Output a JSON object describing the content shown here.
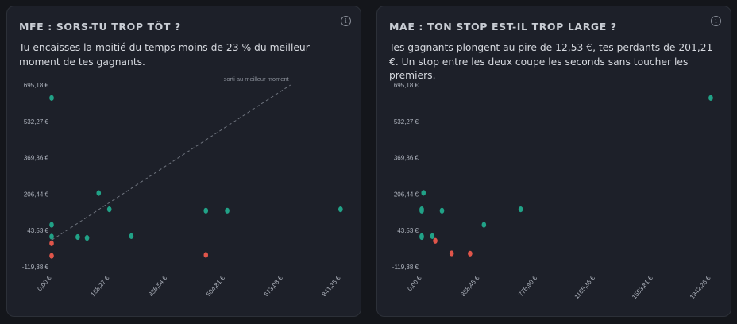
{
  "colors": {
    "winner": "#21a287",
    "loser": "#e0554a",
    "reference_line": "#6e737d"
  },
  "cards": [
    {
      "title": "MFE : SORS-TU TROP TÔT ?",
      "description": "Tu encaisses la moitié du temps moins de 23 % du meilleur moment de tes gagnants.",
      "info_icon": "info-icon"
    },
    {
      "title": "MAE : TON STOP EST-IL TROP LARGE ?",
      "description": "Tes gagnants plongent au pire de 12,53 €, tes perdants de 201,21 €. Un stop entre les deux coupe les seconds sans toucher les premiers.",
      "info_icon": "info-icon"
    }
  ],
  "chart_data": [
    {
      "type": "scatter",
      "x_ticks": [
        0,
        168.27,
        336.54,
        504.81,
        673.08,
        841.35
      ],
      "x_tick_labels": [
        "0,00 €",
        "168,27 €",
        "336,54 €",
        "504,81 €",
        "673,08 €",
        "841,35 €"
      ],
      "y_ticks": [
        -119.38,
        43.53,
        206.44,
        369.36,
        532.27,
        695.18
      ],
      "y_tick_labels": [
        "-119,38 €",
        "43,53 €",
        "206,44 €",
        "369,36 €",
        "532,27 €",
        "695,18 €"
      ],
      "xlim": [
        0,
        841.35
      ],
      "ylim": [
        -119.38,
        695.18
      ],
      "grid": false,
      "reference_line": {
        "from": [
          0,
          0
        ],
        "to": [
          695.18,
          695.18
        ],
        "label": "sorti au meilleur moment"
      },
      "series": [
        {
          "kind": "winner",
          "points": [
            [
              0,
              637
            ],
            [
              0,
              69
            ],
            [
              0,
              16
            ],
            [
              76,
              14
            ],
            [
              103,
              10
            ],
            [
              137,
              211
            ],
            [
              168,
              138
            ],
            [
              232,
              18
            ],
            [
              449,
              132
            ],
            [
              511,
              132
            ],
            [
              841,
              138
            ]
          ]
        },
        {
          "kind": "loser",
          "points": [
            [
              0,
              -14
            ],
            [
              0,
              -70
            ],
            [
              449,
              -66
            ]
          ]
        }
      ]
    },
    {
      "type": "scatter",
      "x_ticks": [
        0,
        388.45,
        776.9,
        1165.36,
        1553.81,
        1942.26
      ],
      "x_tick_labels": [
        "0,00 €",
        "388,45 €",
        "776,90 €",
        "1165,36 €",
        "1553,81 €",
        "1942,26 €"
      ],
      "y_ticks": [
        -119.38,
        43.53,
        206.44,
        369.36,
        532.27,
        695.18
      ],
      "y_tick_labels": [
        "-119,38 €",
        "43,53 €",
        "206,44 €",
        "369,36 €",
        "532,27 €",
        "695,18 €"
      ],
      "xlim": [
        0,
        1942.26
      ],
      "ylim": [
        -119.38,
        695.18
      ],
      "grid": false,
      "series": [
        {
          "kind": "winner",
          "points": [
            [
              12,
              212
            ],
            [
              0,
              138
            ],
            [
              0,
              132
            ],
            [
              0,
              18
            ],
            [
              0,
              14
            ],
            [
              136,
              132
            ],
            [
              71,
              18
            ],
            [
              418,
              69
            ],
            [
              665,
              138
            ],
            [
              1942,
              637
            ]
          ]
        },
        {
          "kind": "loser",
          "points": [
            [
              91,
              -3
            ],
            [
              201,
              -59
            ],
            [
              325,
              -60
            ]
          ]
        }
      ]
    }
  ]
}
